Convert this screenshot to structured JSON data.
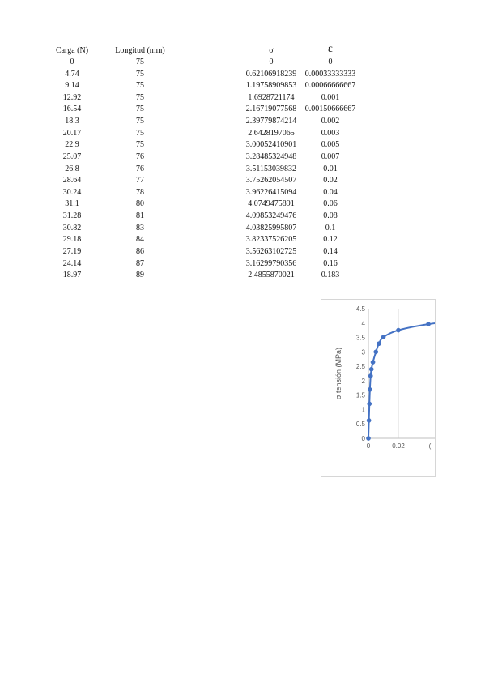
{
  "table": {
    "headers": [
      "Carga (N)",
      "Longitud (mm)",
      "σ",
      "ε"
    ],
    "rows": [
      [
        "0",
        "75",
        "0",
        "0"
      ],
      [
        "4.74",
        "75",
        "0.62106918239",
        "0.00033333333"
      ],
      [
        "9.14",
        "75",
        "1.19758909853",
        "0.00066666667"
      ],
      [
        "12.92",
        "75",
        "1.6928721174",
        "0.001"
      ],
      [
        "16.54",
        "75",
        "2.16719077568",
        "0.00150666667"
      ],
      [
        "18.3",
        "75",
        "2.39779874214",
        "0.002"
      ],
      [
        "20.17",
        "75",
        "2.6428197065",
        "0.003"
      ],
      [
        "22.9",
        "75",
        "3.00052410901",
        "0.005"
      ],
      [
        "25.07",
        "76",
        "3.28485324948",
        "0.007"
      ],
      [
        "26.8",
        "76",
        "3.51153039832",
        "0.01"
      ],
      [
        "28.64",
        "77",
        "3.75262054507",
        "0.02"
      ],
      [
        "30.24",
        "78",
        "3.96226415094",
        "0.04"
      ],
      [
        "31.1",
        "80",
        "4.0749475891",
        "0.06"
      ],
      [
        "31.28",
        "81",
        "4.09853249476",
        "0.08"
      ],
      [
        "30.82",
        "83",
        "4.03825995807",
        "0.1"
      ],
      [
        "29.18",
        "84",
        "3.82337526205",
        "0.12"
      ],
      [
        "27.19",
        "86",
        "3.56263102725",
        "0.14"
      ],
      [
        "24.14",
        "87",
        "3.16299790356",
        "0.16"
      ],
      [
        "18.97",
        "89",
        "2.4855870021",
        "0.183"
      ]
    ]
  },
  "chart_data": {
    "type": "scatter",
    "title": "",
    "xlabel": "",
    "ylabel": "σ tensión (MPa)",
    "x": [
      0,
      0.00033333333,
      0.00066666667,
      0.001,
      0.00150666667,
      0.002,
      0.003,
      0.005,
      0.007,
      0.01,
      0.02,
      0.04,
      0.06,
      0.08,
      0.1,
      0.12,
      0.14,
      0.16,
      0.183
    ],
    "y": [
      0,
      0.62106918239,
      1.19758909853,
      1.6928721174,
      2.16719077568,
      2.39779874214,
      2.6428197065,
      3.00052410901,
      3.28485324948,
      3.51153039832,
      3.75262054507,
      3.96226415094,
      4.0749475891,
      4.09853249476,
      4.03825995807,
      3.82337526205,
      3.56263102725,
      3.16299790356,
      2.4855870021
    ],
    "ylim": [
      0,
      4.5
    ],
    "yticks": [
      "0",
      "0.5",
      "1",
      "1.5",
      "2",
      "2.5",
      "3",
      "3.5",
      "4",
      "4.5"
    ],
    "xticks": [
      "0",
      "0.02"
    ],
    "series_color": "#4472c4",
    "marker": "circle",
    "smooth_line": true
  }
}
